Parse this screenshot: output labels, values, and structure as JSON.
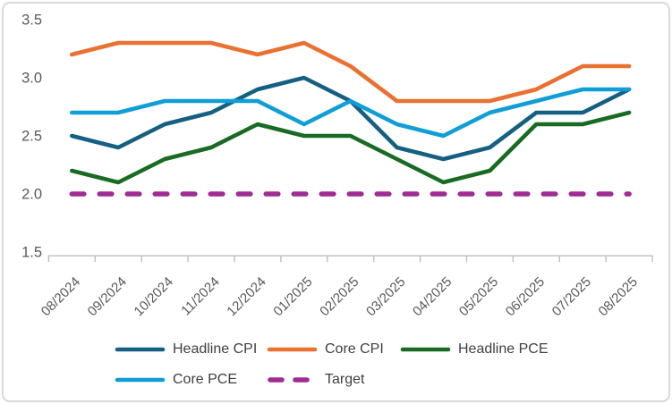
{
  "chart_data": {
    "type": "line",
    "title": "",
    "x": [
      "08/2024",
      "09/2024",
      "10/2024",
      "11/2024",
      "12/2024",
      "01/2025",
      "02/2025",
      "03/2025",
      "04/2025",
      "05/2025",
      "06/2025",
      "07/2025",
      "08/2025"
    ],
    "series": [
      {
        "name": "Headline CPI",
        "key": "headline-cpi",
        "color": "#156082",
        "dashed": false,
        "values": [
          2.5,
          2.4,
          2.6,
          2.7,
          2.9,
          3.0,
          2.8,
          2.4,
          2.3,
          2.4,
          2.7,
          2.7,
          2.9
        ]
      },
      {
        "name": "Core CPI",
        "key": "core-cpi",
        "color": "#E97132",
        "dashed": false,
        "values": [
          3.2,
          3.3,
          3.3,
          3.3,
          3.2,
          3.3,
          3.1,
          2.8,
          2.8,
          2.8,
          2.9,
          3.1,
          3.1
        ]
      },
      {
        "name": "Headline PCE",
        "key": "headline-pce",
        "color": "#196B24",
        "dashed": false,
        "values": [
          2.2,
          2.1,
          2.3,
          2.4,
          2.6,
          2.5,
          2.5,
          2.3,
          2.1,
          2.2,
          2.6,
          2.6,
          2.7
        ]
      },
      {
        "name": "Core PCE",
        "key": "core-pce",
        "color": "#0F9ED5",
        "dashed": false,
        "values": [
          2.7,
          2.7,
          2.8,
          2.8,
          2.8,
          2.6,
          2.8,
          2.6,
          2.5,
          2.7,
          2.8,
          2.9,
          2.9
        ]
      },
      {
        "name": "Target",
        "key": "target",
        "color": "#A02B93",
        "dashed": true,
        "values": [
          2.0,
          2.0,
          2.0,
          2.0,
          2.0,
          2.0,
          2.0,
          2.0,
          2.0,
          2.0,
          2.0,
          2.0,
          2.0
        ]
      }
    ],
    "ylim": [
      1.5,
      3.5
    ],
    "yticks": [
      "3.5",
      "3.0",
      "2.5",
      "2.0",
      "1.5"
    ],
    "xlabel": "",
    "ylabel": "",
    "grid": false,
    "legend_position": "bottom"
  },
  "colors": {
    "axis_line": "#bfbfbf",
    "tick_label": "#595959",
    "legend_text": "#3f3f3f",
    "frame_border": "#d9d9d9",
    "background": "#ffffff"
  }
}
